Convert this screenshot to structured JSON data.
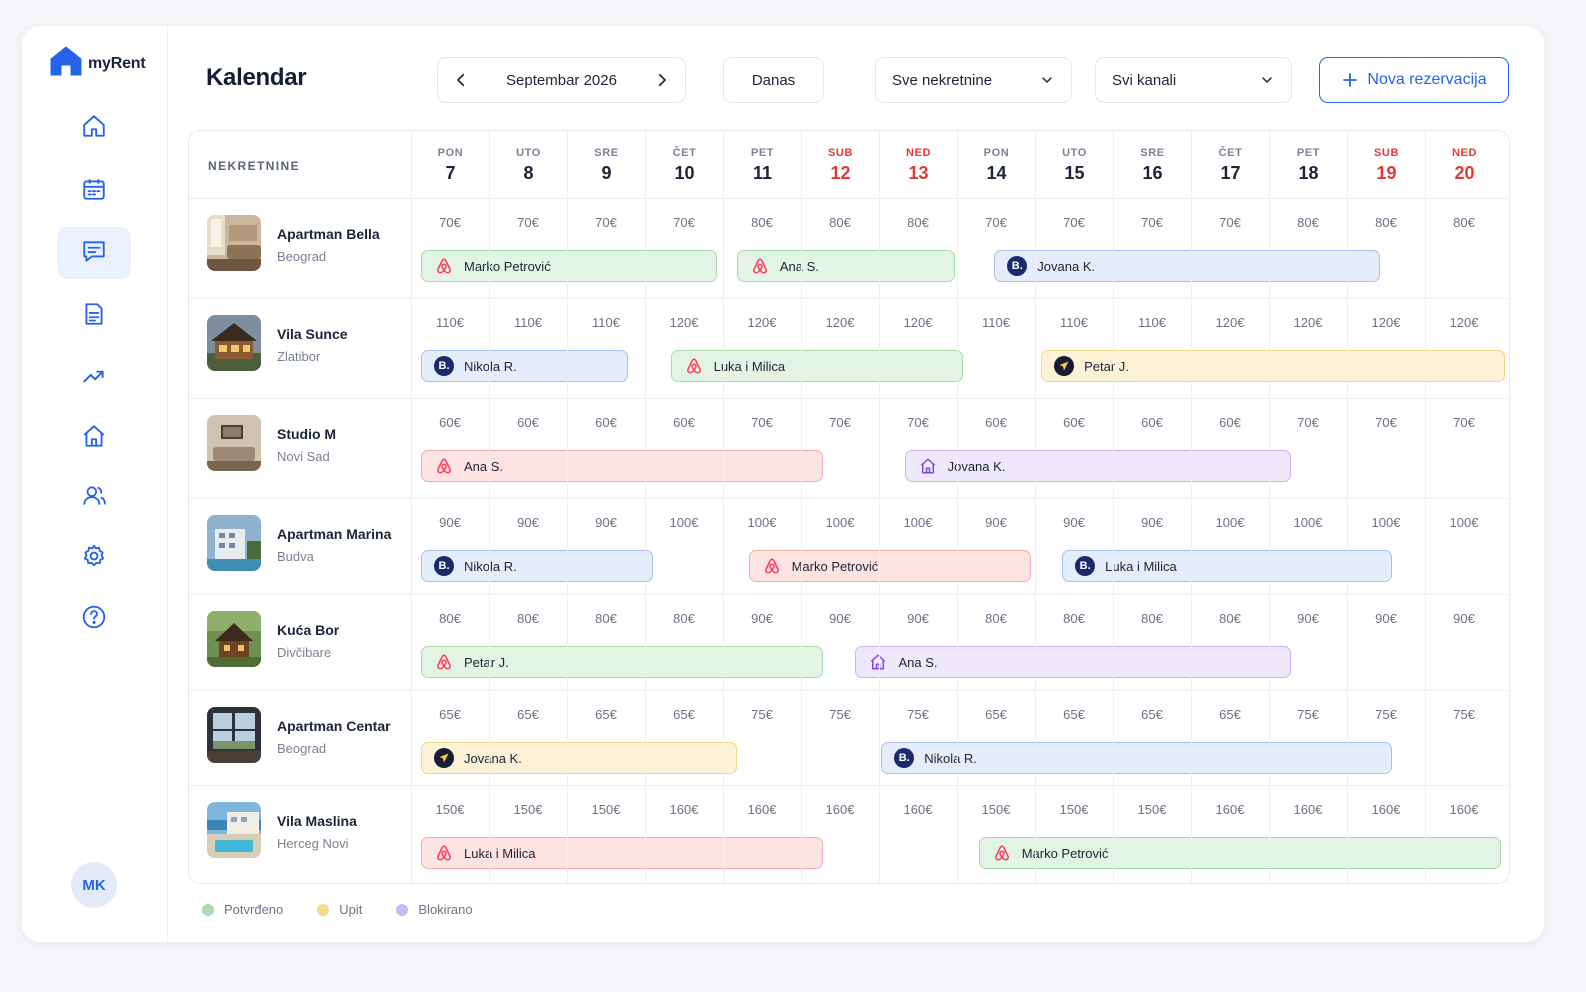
{
  "app": {
    "name": "myRent"
  },
  "page": {
    "title": "Kalendar"
  },
  "header": {
    "month": "Septembar 2026",
    "today": "Danas",
    "properties_filter": "Sve nekretnine",
    "channels_filter": "Svi kanali",
    "new_reservation": "Nova rezervacija"
  },
  "colors": {
    "accent": "#2563eb",
    "weekend": "#e53935",
    "confirmed": "#a6d9ae",
    "inquiry": "#f3d48a",
    "blocked": "#c9b5ef"
  },
  "sidebar": {
    "items": [
      {
        "icon": "home-icon"
      },
      {
        "icon": "calendar-icon"
      },
      {
        "icon": "messages-icon",
        "active": true
      },
      {
        "icon": "document-icon"
      },
      {
        "icon": "trend-icon"
      },
      {
        "icon": "property-icon"
      },
      {
        "icon": "users-icon"
      },
      {
        "icon": "settings-icon"
      },
      {
        "icon": "help-icon"
      }
    ],
    "avatar": "MK"
  },
  "calendar": {
    "properties_header": "NEKRETNINE",
    "days": [
      {
        "dow": "PON",
        "num": "7"
      },
      {
        "dow": "UTO",
        "num": "8"
      },
      {
        "dow": "SRE",
        "num": "9"
      },
      {
        "dow": "ČET",
        "num": "10"
      },
      {
        "dow": "PET",
        "num": "11"
      },
      {
        "dow": "SUB",
        "num": "12",
        "weekend": true
      },
      {
        "dow": "NED",
        "num": "13",
        "weekend": true
      },
      {
        "dow": "PON",
        "num": "14"
      },
      {
        "dow": "UTO",
        "num": "15"
      },
      {
        "dow": "SRE",
        "num": "16"
      },
      {
        "dow": "ČET",
        "num": "17"
      },
      {
        "dow": "PET",
        "num": "18"
      },
      {
        "dow": "SUB",
        "num": "19",
        "weekend": true
      },
      {
        "dow": "NED",
        "num": "20",
        "weekend": true
      }
    ],
    "rows": [
      {
        "name": "Apartman Bella",
        "city": "Beograd",
        "thumb": "interior",
        "prices": [
          "70€",
          "70€",
          "70€",
          "70€",
          "80€",
          "80€",
          "80€",
          "70€",
          "70€",
          "70€",
          "70€",
          "80€",
          "80€",
          "80€"
        ],
        "bookings": [
          {
            "guest": "Marko Petrović",
            "channel": "airbnb",
            "color": "green",
            "start": 0,
            "end": 3.8
          },
          {
            "guest": "Ana S.",
            "channel": "airbnb",
            "color": "green",
            "start": 4.05,
            "end": 6.85
          },
          {
            "guest": "Jovana K.",
            "channel": "booking",
            "color": "blue",
            "start": 7.35,
            "end": 12.3
          }
        ]
      },
      {
        "name": "Vila Sunce",
        "city": "Zlatibor",
        "thumb": "house",
        "prices": [
          "110€",
          "110€",
          "110€",
          "120€",
          "120€",
          "120€",
          "120€",
          "110€",
          "110€",
          "110€",
          "120€",
          "120€",
          "120€",
          "120€"
        ],
        "bookings": [
          {
            "guest": "Nikola R.",
            "channel": "booking",
            "color": "blue",
            "start": 0,
            "end": 2.65
          },
          {
            "guest": "Luka i Milica",
            "channel": "airbnb",
            "color": "green",
            "start": 3.2,
            "end": 6.95
          },
          {
            "guest": "Petar J.",
            "channel": "expedia",
            "color": "yellow",
            "start": 7.95,
            "end": 13.9
          }
        ]
      },
      {
        "name": "Studio M",
        "city": "Novi Sad",
        "thumb": "studio",
        "prices": [
          "60€",
          "60€",
          "60€",
          "60€",
          "70€",
          "70€",
          "70€",
          "60€",
          "60€",
          "60€",
          "60€",
          "70€",
          "70€",
          "70€"
        ],
        "bookings": [
          {
            "guest": "Ana S.",
            "channel": "airbnb",
            "color": "red",
            "start": 0,
            "end": 5.15
          },
          {
            "guest": "Jovana K.",
            "channel": "direct",
            "color": "purple",
            "start": 6.2,
            "end": 11.15
          }
        ]
      },
      {
        "name": "Apartman Marina",
        "city": "Budva",
        "thumb": "marina",
        "prices": [
          "90€",
          "90€",
          "90€",
          "100€",
          "100€",
          "100€",
          "100€",
          "90€",
          "90€",
          "90€",
          "100€",
          "100€",
          "100€",
          "100€"
        ],
        "bookings": [
          {
            "guest": "Nikola R.",
            "channel": "booking",
            "color": "blue",
            "start": 0,
            "end": 2.98
          },
          {
            "guest": "Marko Petrović",
            "channel": "airbnb",
            "color": "red",
            "start": 4.2,
            "end": 7.82
          },
          {
            "guest": "Luka i Milica",
            "channel": "booking",
            "color": "blue",
            "start": 8.22,
            "end": 12.45
          }
        ]
      },
      {
        "name": "Kuća Bor",
        "city": "Divčibare",
        "thumb": "cabin",
        "prices": [
          "80€",
          "80€",
          "80€",
          "80€",
          "90€",
          "90€",
          "90€",
          "80€",
          "80€",
          "80€",
          "80€",
          "90€",
          "90€",
          "90€"
        ],
        "bookings": [
          {
            "guest": "Petar J.",
            "channel": "airbnb",
            "color": "green",
            "start": 0,
            "end": 5.15
          },
          {
            "guest": "Ana S.",
            "channel": "direct",
            "color": "purple",
            "start": 5.57,
            "end": 11.15
          }
        ]
      },
      {
        "name": "Apartman Centar",
        "city": "Beograd",
        "thumb": "window",
        "prices": [
          "65€",
          "65€",
          "65€",
          "65€",
          "75€",
          "75€",
          "75€",
          "65€",
          "65€",
          "65€",
          "65€",
          "75€",
          "75€",
          "75€"
        ],
        "bookings": [
          {
            "guest": "Jovana K.",
            "channel": "expedia",
            "color": "yellow",
            "start": 0,
            "end": 4.05
          },
          {
            "guest": "Nikola R.",
            "channel": "booking",
            "color": "blue",
            "start": 5.9,
            "end": 12.45
          }
        ]
      },
      {
        "name": "Vila Maslina",
        "city": "Herceg Novi",
        "thumb": "pool",
        "prices": [
          "150€",
          "150€",
          "150€",
          "160€",
          "160€",
          "160€",
          "160€",
          "150€",
          "150€",
          "150€",
          "160€",
          "160€",
          "160€",
          "160€"
        ],
        "bookings": [
          {
            "guest": "Luka i Milica",
            "channel": "airbnb",
            "color": "red",
            "start": 0,
            "end": 5.15
          },
          {
            "guest": "Marko Petrović",
            "channel": "airbnb",
            "color": "green",
            "start": 7.15,
            "end": 13.85
          }
        ]
      }
    ]
  },
  "legend": [
    {
      "label": "Potvrđeno",
      "color": "#a9dcb0"
    },
    {
      "label": "Upit",
      "color": "#f7d98a"
    },
    {
      "label": "Blokirano",
      "color": "#cdb9f2"
    }
  ]
}
